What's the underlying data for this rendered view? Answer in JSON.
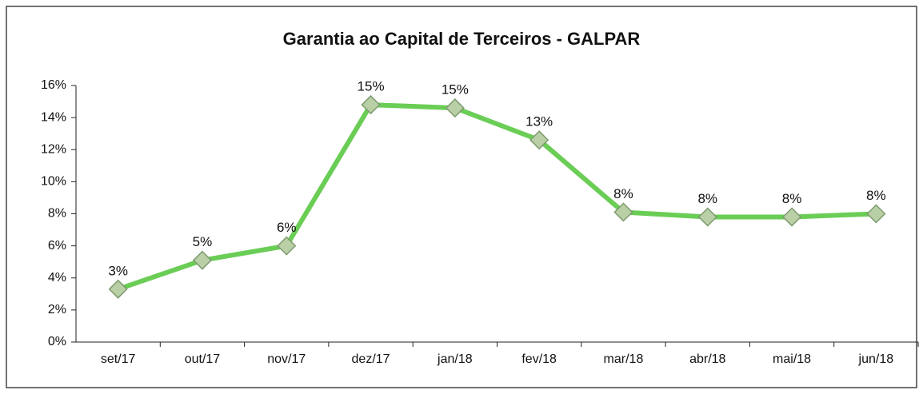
{
  "chart_data": {
    "type": "line",
    "title": "Garantia ao Capital de Terceiros - GALPAR",
    "categories": [
      "set/17",
      "out/17",
      "nov/17",
      "dez/17",
      "jan/18",
      "fev/18",
      "mar/18",
      "abr/18",
      "mai/18",
      "jun/18"
    ],
    "series": [
      {
        "color": "#6acd55",
        "values": [
          3.3,
          5.1,
          6.0,
          14.8,
          14.6,
          12.6,
          8.1,
          7.8,
          7.8,
          8.0
        ],
        "value_labels": [
          "3%",
          "5%",
          "6%",
          "15%",
          "15%",
          "13%",
          "8%",
          "8%",
          "8%",
          "8%"
        ]
      }
    ],
    "ylim": [
      0,
      16
    ],
    "yticks": [
      {
        "value": 0,
        "label": "0%"
      },
      {
        "value": 2,
        "label": "2%"
      },
      {
        "value": 4,
        "label": "4%"
      },
      {
        "value": 6,
        "label": "6%"
      },
      {
        "value": 8,
        "label": "8%"
      },
      {
        "value": 10,
        "label": "10%"
      },
      {
        "value": 12,
        "label": "12%"
      },
      {
        "value": 14,
        "label": "14%"
      },
      {
        "value": 16,
        "label": "16%"
      }
    ]
  }
}
